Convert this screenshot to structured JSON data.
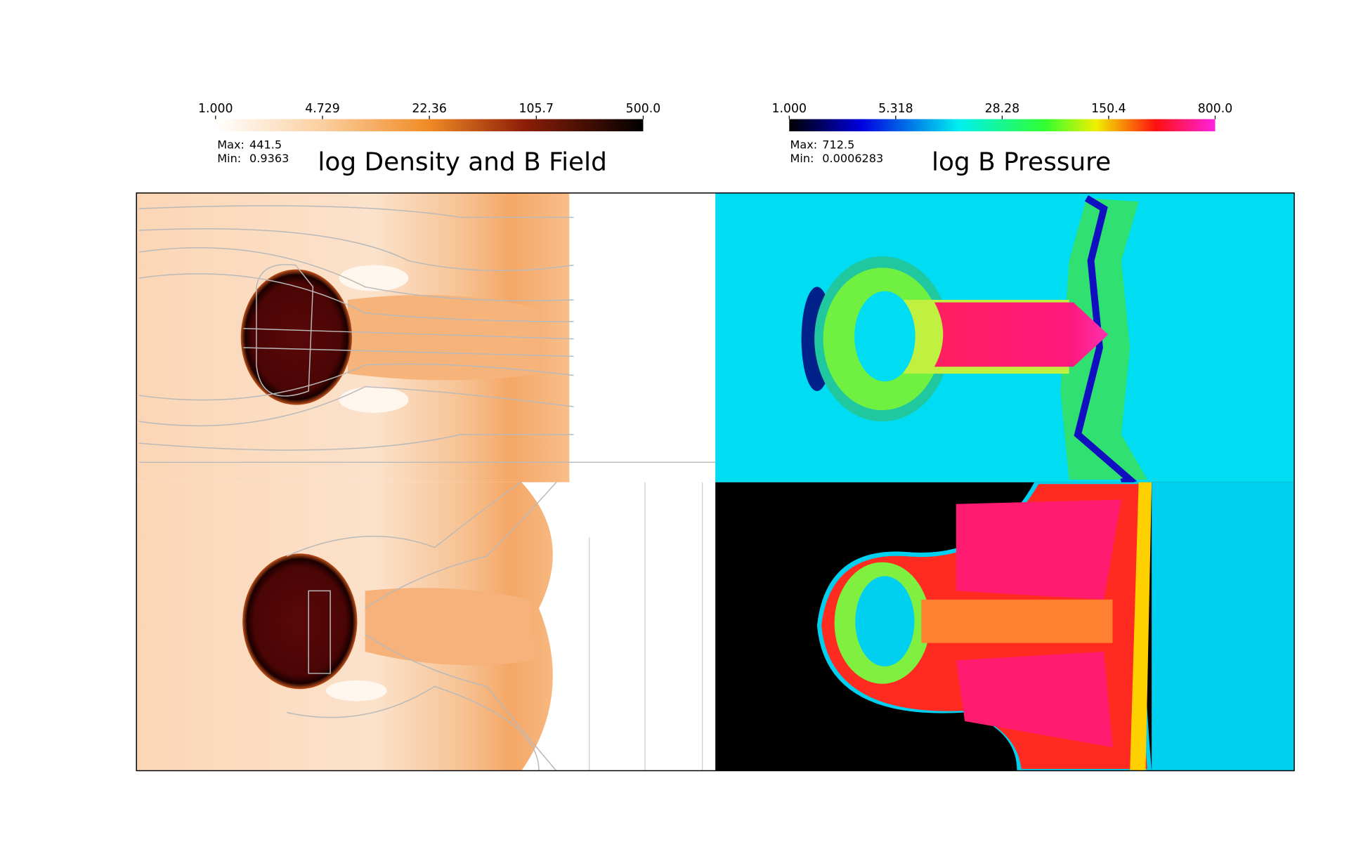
{
  "panels": [
    {
      "title": "log Density and B Field",
      "colorbar": {
        "ticks": [
          "1.000",
          "4.729",
          "22.36",
          "105.7",
          "500.0"
        ]
      },
      "max_label": "Max:",
      "max": "441.5",
      "min_label": "Min:",
      "min": "0.9363"
    },
    {
      "title": "log B Pressure",
      "colorbar": {
        "ticks": [
          "1.000",
          "5.318",
          "28.28",
          "150.4",
          "800.0"
        ]
      },
      "max_label": "Max:",
      "max": "712.5",
      "min_label": "Min:",
      "min": "0.0006283"
    }
  ]
}
